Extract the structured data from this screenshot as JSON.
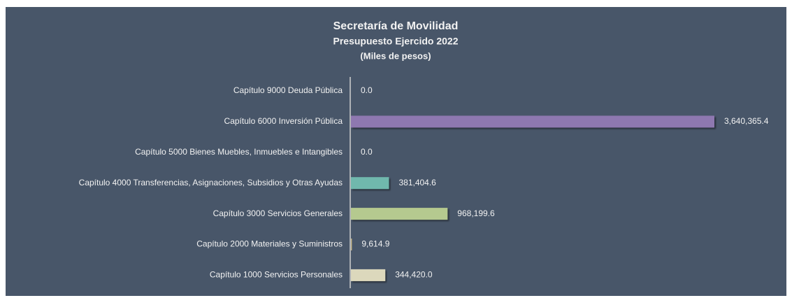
{
  "chart_data": {
    "type": "barh",
    "title": "Secretaría de Movilidad",
    "subtitle": "Presupuesto Ejercido 2022",
    "unit_label": "(Miles de pesos)",
    "categories": [
      "Capítulo 9000 Deuda Pública",
      "Capítulo 6000 Inversión Pública",
      "Capítulo 5000 Bienes Muebles, Inmuebles e Intangibles",
      "Capítulo 4000 Transferencias, Asignaciones, Subsidios y Otras Ayudas",
      "Capítulo 3000 Servicios Generales",
      "Capítulo 2000 Materiales y Suministros",
      "Capítulo 1000 Servicios Personales"
    ],
    "values": [
      0,
      3640365.4,
      0,
      381404.6,
      968199.6,
      9614.9,
      344420
    ],
    "value_labels": [
      "0.0",
      "3,640,365.4",
      "0.0",
      "381,404.6",
      "968,199.6",
      "9,614.9",
      "344,420.0"
    ],
    "colors": [
      "#9a8f6a",
      "#8e78b0",
      "#9a8f6a",
      "#6fb8ad",
      "#b5c98f",
      "#c8b88a",
      "#dcd8bc"
    ]
  }
}
